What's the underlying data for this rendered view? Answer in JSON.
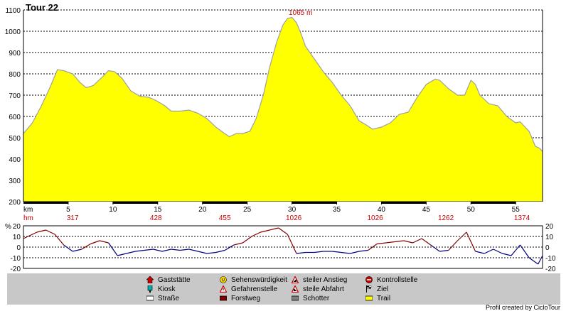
{
  "chart_data": {
    "type": "area",
    "title": "Tour 22",
    "peak_label": "1065 m",
    "elevation": {
      "ylim": [
        200,
        1100
      ],
      "yticks": [
        200,
        300,
        400,
        500,
        600,
        700,
        800,
        900,
        1000,
        1100
      ],
      "xlim": [
        0,
        58
      ],
      "x_unit": "km",
      "xticks": [
        5,
        10,
        15,
        20,
        25,
        30,
        35,
        40,
        45,
        50,
        55
      ],
      "fill_color": "#ffff00",
      "line_color": "#a0a0a0",
      "grid": true,
      "km": [
        0,
        1,
        2,
        3,
        3.8,
        4.5,
        5.5,
        6.3,
        7.0,
        7.8,
        8.8,
        9.5,
        10.2,
        11.0,
        12.0,
        13.0,
        14.0,
        14.8,
        15.8,
        16.5,
        17.5,
        18.5,
        19.5,
        20.5,
        21.5,
        22.3,
        23.0,
        23.8,
        24.5,
        25.3,
        26.0,
        26.8,
        27.5,
        28.3,
        29.0,
        29.5,
        30.0,
        30.5,
        31.0,
        31.5,
        32.5,
        33.5,
        34.5,
        35.5,
        36.5,
        37.5,
        38.3,
        39.0,
        40.0,
        41.0,
        42.0,
        43.0,
        44.0,
        45.0,
        46.0,
        46.5,
        47.5,
        48.5,
        49.3,
        50.0,
        50.5,
        51.0,
        52.0,
        53.0,
        54.0,
        55.0,
        55.5,
        56.5,
        57.2,
        57.7,
        58.0
      ],
      "elevation_m": [
        520,
        570,
        650,
        740,
        820,
        815,
        800,
        760,
        735,
        745,
        785,
        815,
        810,
        780,
        720,
        695,
        690,
        675,
        650,
        625,
        625,
        630,
        615,
        590,
        550,
        525,
        505,
        520,
        520,
        530,
        590,
        700,
        830,
        950,
        1030,
        1060,
        1065,
        1040,
        990,
        930,
        870,
        810,
        760,
        700,
        650,
        580,
        560,
        540,
        550,
        570,
        610,
        620,
        690,
        750,
        775,
        770,
        730,
        700,
        700,
        770,
        750,
        700,
        660,
        650,
        600,
        570,
        575,
        530,
        460,
        450,
        435
      ]
    },
    "hm_markers": [
      {
        "km": 5.5,
        "value": 317
      },
      {
        "km": 14.8,
        "value": 428
      },
      {
        "km": 22.5,
        "value": 455
      },
      {
        "km": 30.2,
        "value": 1026
      },
      {
        "km": 39.3,
        "value": 1026
      },
      {
        "km": 47.2,
        "value": 1262
      },
      {
        "km": 55.7,
        "value": 1374
      }
    ],
    "gradient": {
      "ylim": [
        -20,
        20
      ],
      "yticks": [
        20,
        10,
        0,
        -10,
        -20
      ],
      "unit": "%",
      "uphill_color": "#800000",
      "downhill_color": "#000080",
      "km": [
        0,
        1.5,
        2.5,
        3.5,
        4.5,
        5.5,
        6.5,
        7.5,
        8.5,
        9.5,
        10.5,
        11.5,
        12.5,
        13.5,
        14.5,
        15.5,
        16.5,
        17.5,
        18.5,
        19.5,
        20.5,
        21.5,
        22.5,
        23.5,
        24.5,
        25.5,
        26.5,
        27.5,
        28.5,
        29.5,
        30.5,
        31.5,
        32.5,
        33.5,
        34.5,
        35.5,
        36.5,
        37.5,
        38.5,
        39.5,
        40.5,
        41.5,
        42.5,
        43.5,
        44.5,
        45.5,
        46.5,
        47.5,
        48.5,
        49.5,
        50.5,
        51.5,
        52.5,
        53.5,
        54.5,
        55.5,
        56.5,
        57.5,
        58
      ],
      "percent": [
        8,
        14,
        16,
        12,
        2,
        -4,
        -2,
        3,
        6,
        4,
        -8,
        -6,
        -4,
        -3,
        -2,
        -4,
        -2,
        -3,
        -2,
        -4,
        -6,
        -5,
        -3,
        2,
        4,
        10,
        14,
        16,
        18,
        12,
        -6,
        -5,
        -5,
        -4,
        -4,
        -5,
        -6,
        -4,
        -3,
        3,
        4,
        5,
        6,
        4,
        8,
        2,
        -4,
        -3,
        6,
        14,
        -4,
        -6,
        -2,
        -6,
        -8,
        2,
        -10,
        -16,
        -8
      ]
    }
  },
  "legend": {
    "items": [
      {
        "icon": "house-icon",
        "label": "Gaststätte",
        "color": "#cc0000"
      },
      {
        "icon": "kiosk-icon",
        "label": "Kiosk",
        "color": "#00aaaa"
      },
      {
        "icon": "road-swatch-icon",
        "label": "Straße",
        "color": "#ffffff"
      },
      {
        "icon": "smiley-icon",
        "label": "Sehenswürdigkeit",
        "color": "#ffdd00"
      },
      {
        "icon": "warning-icon",
        "label": "Gefahrenstelle",
        "color": "#cc0000"
      },
      {
        "icon": "forest-track-swatch-icon",
        "label": "Forstweg",
        "color": "#800000"
      },
      {
        "icon": "steep-climb-icon",
        "label": "steiler Anstieg",
        "color": "#cc0000"
      },
      {
        "icon": "steep-descent-icon",
        "label": "steile Abfahrt",
        "color": "#cc0000"
      },
      {
        "icon": "gravel-swatch-icon",
        "label": "Schotter",
        "color": "#808080"
      },
      {
        "icon": "checkpoint-icon",
        "label": "Kontrollstelle",
        "color": "#cc0000"
      },
      {
        "icon": "finish-flag-icon",
        "label": "Ziel",
        "color": "#000000"
      },
      {
        "icon": "trail-swatch-icon",
        "label": "Trail",
        "color": "#ffff00"
      }
    ]
  },
  "credit": "Profil created by CicloTour",
  "colors": {
    "accent_red": "#cc0000",
    "panel_bg": "#c8c8c8"
  }
}
